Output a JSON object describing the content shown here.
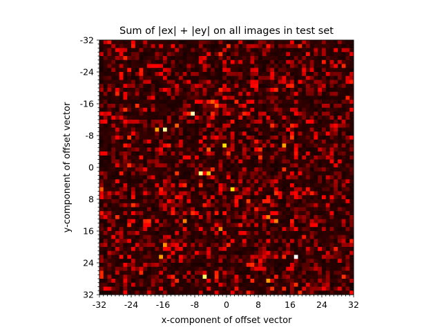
{
  "chart_data": {
    "type": "heatmap",
    "title": "Sum of |ex| + |ey| on all images in test set",
    "xlabel": "x-component of offset vector",
    "ylabel": "y-component of offset vector",
    "x_range": [
      -32,
      32
    ],
    "y_range": [
      -32,
      32
    ],
    "y_inverted": true,
    "grid": false,
    "colormap": "hot",
    "cells": 64,
    "x_ticks": [
      -32,
      -24,
      -16,
      -8,
      0,
      8,
      16,
      24,
      32
    ],
    "x_tick_labels": [
      "-32",
      "-24",
      "-16",
      "-8",
      "0",
      "8",
      "16",
      "24",
      "32"
    ],
    "y_ticks": [
      -32,
      -24,
      -16,
      -8,
      0,
      8,
      16,
      24,
      32
    ],
    "y_tick_labels": [
      "-32",
      "-24",
      "-16",
      "-8",
      "0",
      "8",
      "16",
      "24",
      "32"
    ],
    "hotspots": [
      {
        "x": -9,
        "y": -14,
        "v": 0.93
      },
      {
        "x": -16,
        "y": -10,
        "v": 0.9
      },
      {
        "x": -18,
        "y": -10,
        "v": 0.6
      },
      {
        "x": -7,
        "y": 1,
        "v": 0.88
      },
      {
        "x": -5,
        "y": 1,
        "v": 0.65
      },
      {
        "x": -1,
        "y": -6,
        "v": 0.7
      },
      {
        "x": 1,
        "y": 5,
        "v": 0.7
      },
      {
        "x": 17,
        "y": 22,
        "v": 1.0
      },
      {
        "x": -18,
        "y": 32,
        "v": 0.9
      },
      {
        "x": -6,
        "y": 27,
        "v": 0.85
      },
      {
        "x": -17,
        "y": 22,
        "v": 0.6
      },
      {
        "x": -16,
        "y": 19,
        "v": 0.58
      },
      {
        "x": -11,
        "y": 13,
        "v": 0.55
      },
      {
        "x": -2,
        "y": 15,
        "v": 0.55
      },
      {
        "x": 10,
        "y": 12,
        "v": 0.55
      },
      {
        "x": 12,
        "y": 13,
        "v": 0.55
      },
      {
        "x": 14,
        "y": -6,
        "v": 0.6
      },
      {
        "x": 10,
        "y": 28,
        "v": 0.6
      },
      {
        "x": -4,
        "y": -17,
        "v": 0.5
      },
      {
        "x": -3,
        "y": -16,
        "v": 0.5
      },
      {
        "x": -13,
        "y": -11,
        "v": 0.5
      },
      {
        "x": -5,
        "y": -5,
        "v": 0.5
      },
      {
        "x": 5,
        "y": 8,
        "v": 0.45
      },
      {
        "x": -32,
        "y": 5,
        "v": 0.5
      },
      {
        "x": 16,
        "y": -8,
        "v": 0.45
      }
    ]
  }
}
